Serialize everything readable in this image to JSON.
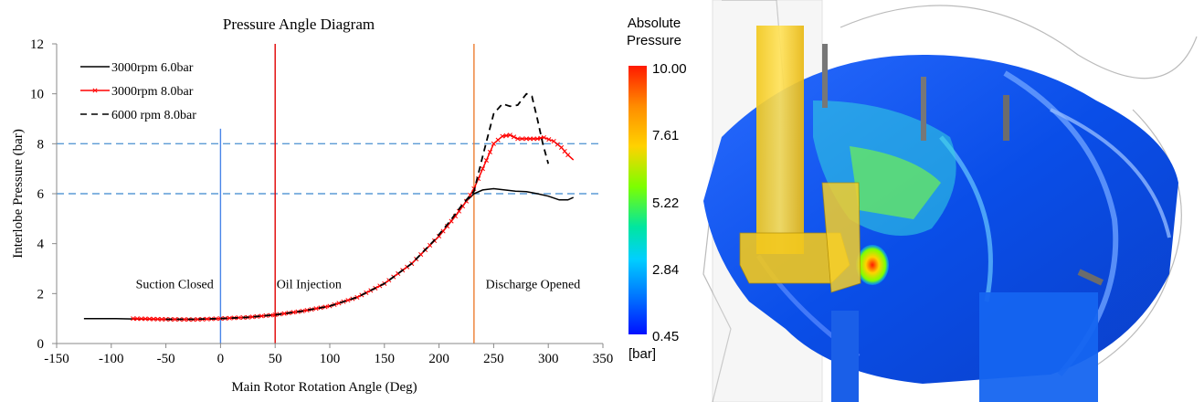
{
  "chart_data": {
    "type": "line",
    "title": "Pressure Angle Diagram",
    "xlabel": "Main Rotor Rotation Angle (Deg)",
    "ylabel": "Interlobe Pressure (bar)",
    "xlim": [
      -150,
      350
    ],
    "ylim": [
      0,
      12
    ],
    "xticks": [
      -150,
      -100,
      -50,
      0,
      50,
      100,
      150,
      200,
      250,
      300,
      350
    ],
    "yticks": [
      0,
      2,
      4,
      6,
      8,
      10,
      12
    ],
    "grid": false,
    "legend_placement": "top-left",
    "series": [
      {
        "name": "3000rpm 6.0bar",
        "color": "#000000",
        "style": "solid",
        "x": [
          -125,
          -100,
          -75,
          -50,
          -25,
          0,
          25,
          50,
          75,
          100,
          125,
          150,
          175,
          200,
          215,
          225,
          232,
          240,
          250,
          260,
          270,
          280,
          290,
          300,
          310,
          318,
          323
        ],
        "y": [
          1.0,
          1.0,
          0.98,
          0.97,
          0.97,
          1.0,
          1.05,
          1.15,
          1.3,
          1.5,
          1.85,
          2.4,
          3.2,
          4.3,
          5.1,
          5.7,
          6.0,
          6.15,
          6.2,
          6.15,
          6.1,
          6.08,
          6.0,
          5.9,
          5.75,
          5.75,
          5.85
        ]
      },
      {
        "name": "3000rpm 8.0bar",
        "color": "#ff0000",
        "style": "solid-x-markers",
        "x": [
          -80,
          -50,
          -25,
          0,
          25,
          50,
          75,
          100,
          125,
          150,
          175,
          200,
          215,
          225,
          232,
          240,
          250,
          258,
          265,
          272,
          280,
          290,
          296,
          305,
          312,
          318,
          323
        ],
        "y": [
          1.0,
          0.97,
          0.96,
          1.0,
          1.05,
          1.15,
          1.3,
          1.5,
          1.85,
          2.4,
          3.2,
          4.3,
          5.1,
          5.7,
          6.2,
          7.0,
          8.0,
          8.3,
          8.35,
          8.2,
          8.2,
          8.2,
          8.25,
          8.1,
          7.85,
          7.55,
          7.35
        ]
      },
      {
        "name": "6000 rpm 8.0bar",
        "color": "#000000",
        "style": "dashed",
        "x": [
          -50,
          -25,
          0,
          25,
          50,
          75,
          100,
          125,
          150,
          175,
          195,
          210,
          222,
          232,
          240,
          250,
          258,
          265,
          272,
          280,
          285,
          290,
          295,
          300
        ],
        "y": [
          0.97,
          0.97,
          1.0,
          1.05,
          1.15,
          1.3,
          1.5,
          1.85,
          2.4,
          3.2,
          4.1,
          4.9,
          5.6,
          6.1,
          7.5,
          9.2,
          9.6,
          9.5,
          9.55,
          10.0,
          9.9,
          9.0,
          8.0,
          7.2
        ]
      }
    ],
    "reference_lines": [
      {
        "orientation": "horizontal",
        "value": 8,
        "color": "#5b9bd5",
        "style": "dashed"
      },
      {
        "orientation": "horizontal",
        "value": 6,
        "color": "#5b9bd5",
        "style": "dashed"
      },
      {
        "orientation": "vertical",
        "value": 0,
        "ymax": 8.6,
        "color": "#4a86e8",
        "style": "solid"
      },
      {
        "orientation": "vertical",
        "value": 50,
        "ymax": 12,
        "color": "#e00000",
        "style": "solid"
      },
      {
        "orientation": "vertical",
        "value": 232,
        "ymax": 12,
        "color": "#ed7d31",
        "style": "solid"
      }
    ],
    "annotations": [
      {
        "text": "Suction Closed",
        "x": -42,
        "y": 2.4
      },
      {
        "text": "Oil Injection",
        "x": 81,
        "y": 2.4
      },
      {
        "text": "Discharge Opened",
        "x": 286,
        "y": 2.4
      }
    ]
  },
  "figure": {
    "colorbar": {
      "title_line1": "Absolute",
      "title_line2": "Pressure",
      "unit": "[bar]",
      "ticks": [
        "10.00",
        "7.61",
        "5.22",
        "2.84",
        "0.45"
      ],
      "colors": [
        "#ff1a00",
        "#ff8c00",
        "#ffd200",
        "#7cff00",
        "#00e6a0",
        "#00cfff",
        "#0074ff",
        "#0010ff"
      ]
    }
  }
}
